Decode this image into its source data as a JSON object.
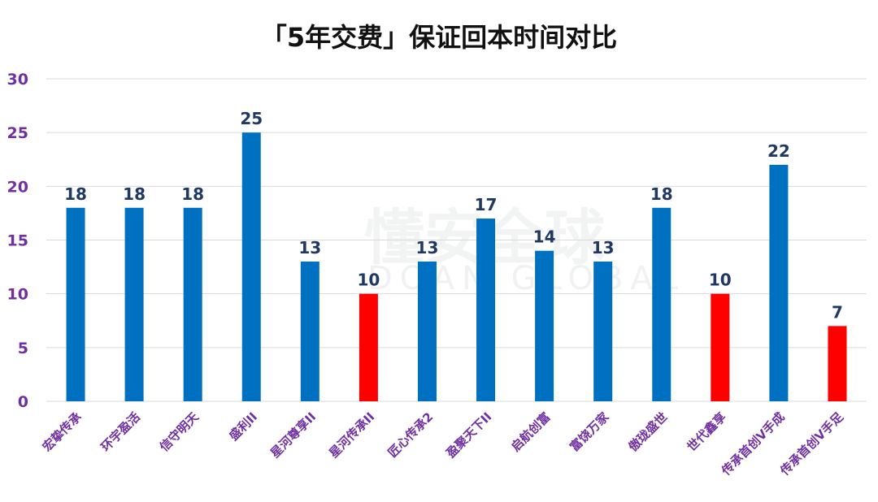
{
  "chart_data": {
    "type": "bar",
    "title": "「5年交费」保证回本时间对比",
    "xlabel": "",
    "ylabel": "",
    "ylim": [
      0,
      30
    ],
    "yticks": [
      0,
      5,
      10,
      15,
      20,
      25,
      30
    ],
    "grid": true,
    "legend": "none",
    "categories": [
      "宏挚传承",
      "环宇盈活",
      "信守明天",
      "盛利II",
      "星河尊享II",
      "星河传承II",
      "匠心传承2",
      "盈聚天下II",
      "启航创富",
      "富饶万家",
      "傲珑盛世",
      "世代鑫享",
      "传承首创V手成",
      "传承首创V手足"
    ],
    "values": [
      18,
      18,
      18,
      25,
      13,
      10,
      13,
      17,
      14,
      13,
      18,
      10,
      22,
      7
    ],
    "highlighted": [
      false,
      false,
      false,
      false,
      false,
      true,
      false,
      false,
      false,
      false,
      false,
      true,
      false,
      true
    ]
  },
  "watermark": {
    "text_cn": "懂安全球",
    "text_en": "DOAN GLOBAL"
  },
  "colors": {
    "bar": "#0070C0",
    "highlight": "#FF0000",
    "data_label": "#1F3864",
    "tick_label": "#7030A0",
    "grid": "#D9D9D9",
    "title": "#111111"
  }
}
